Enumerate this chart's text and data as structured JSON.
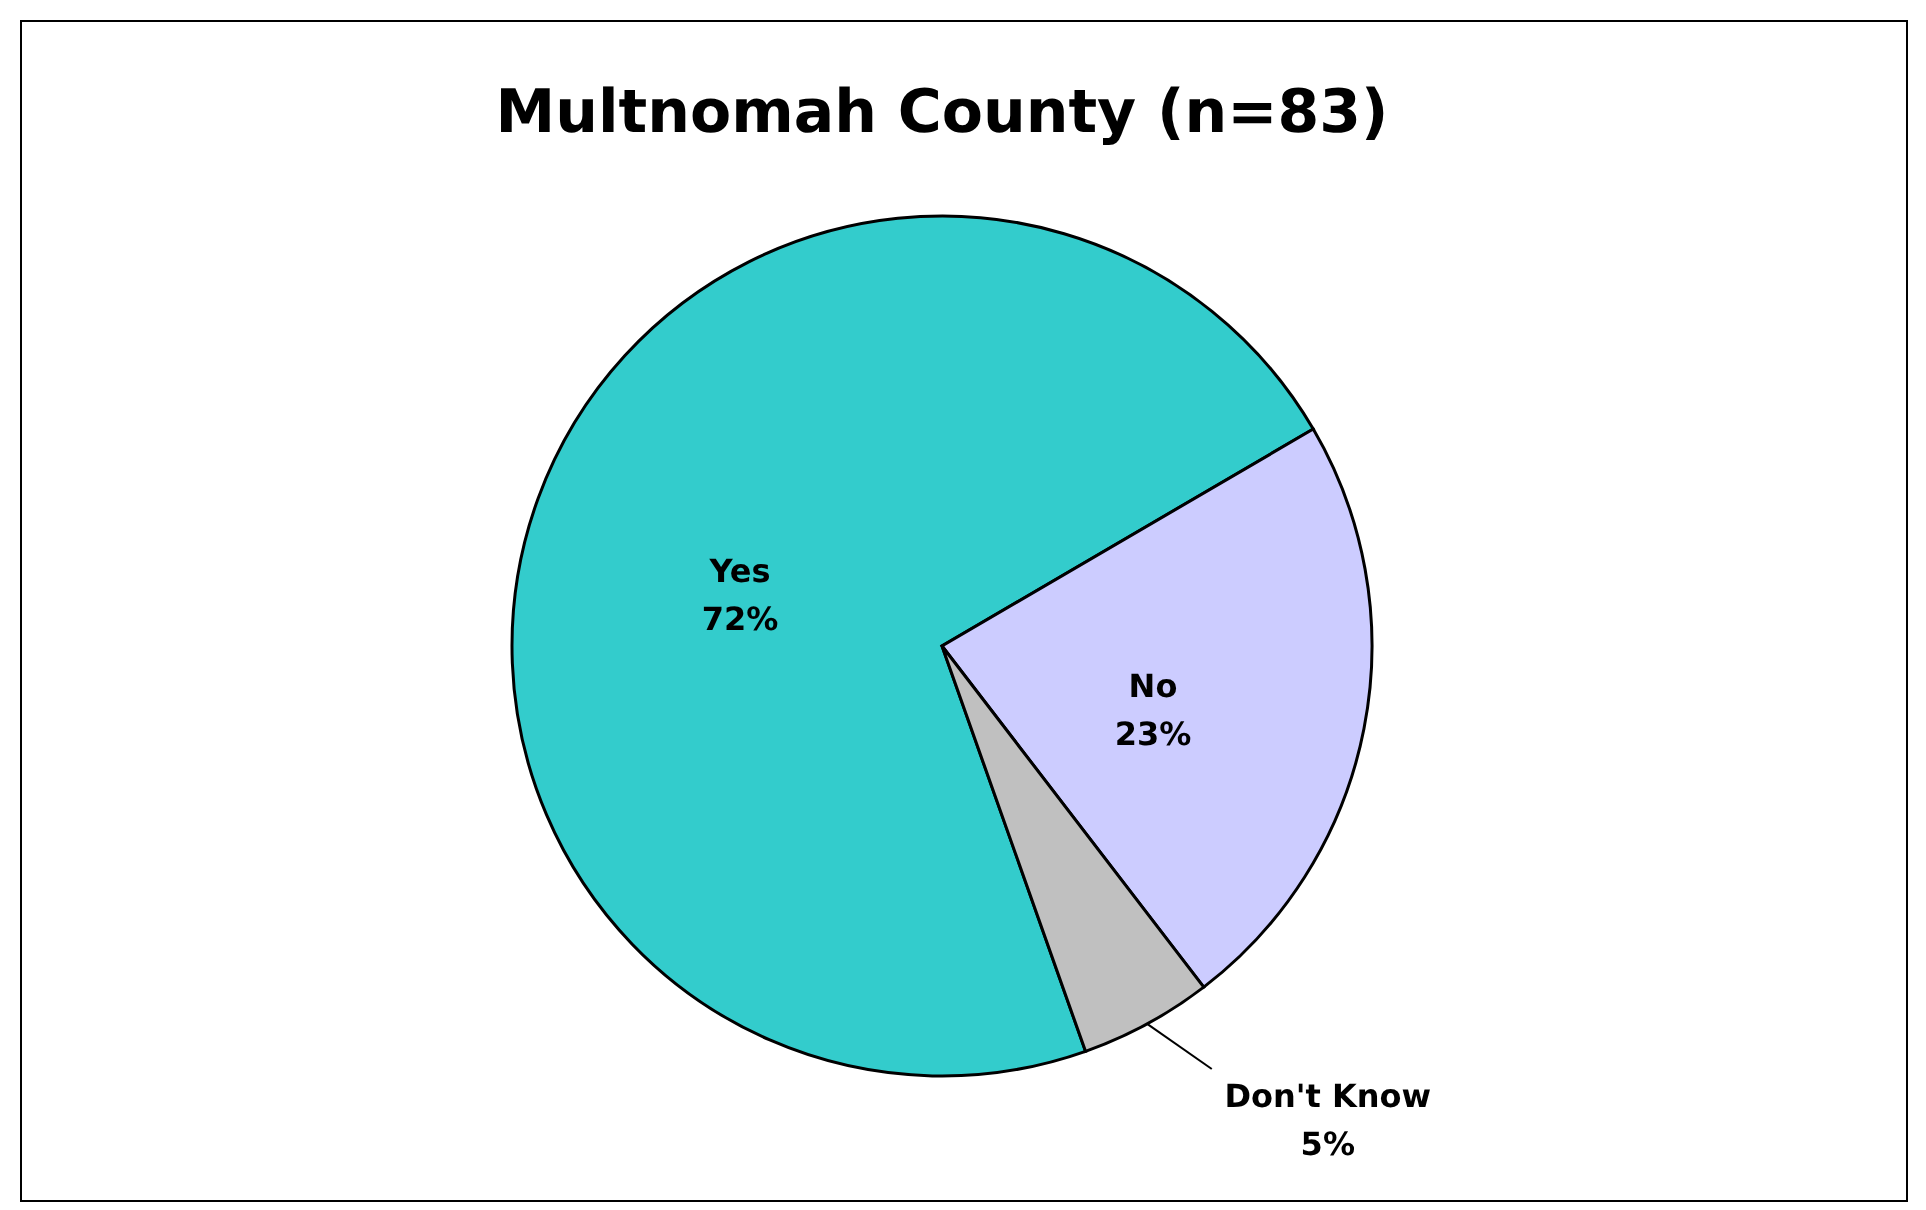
{
  "chart_data": {
    "type": "pie",
    "title": "Multnomah County (n=83)",
    "categories": [
      "Yes",
      "No",
      "Don't Know"
    ],
    "values": [
      72,
      23,
      5
    ],
    "colors": [
      "#33cccc",
      "#ccccff",
      "#c0c0c0"
    ],
    "value_labels": [
      "72%",
      "23%",
      "5%"
    ],
    "legend": false
  }
}
